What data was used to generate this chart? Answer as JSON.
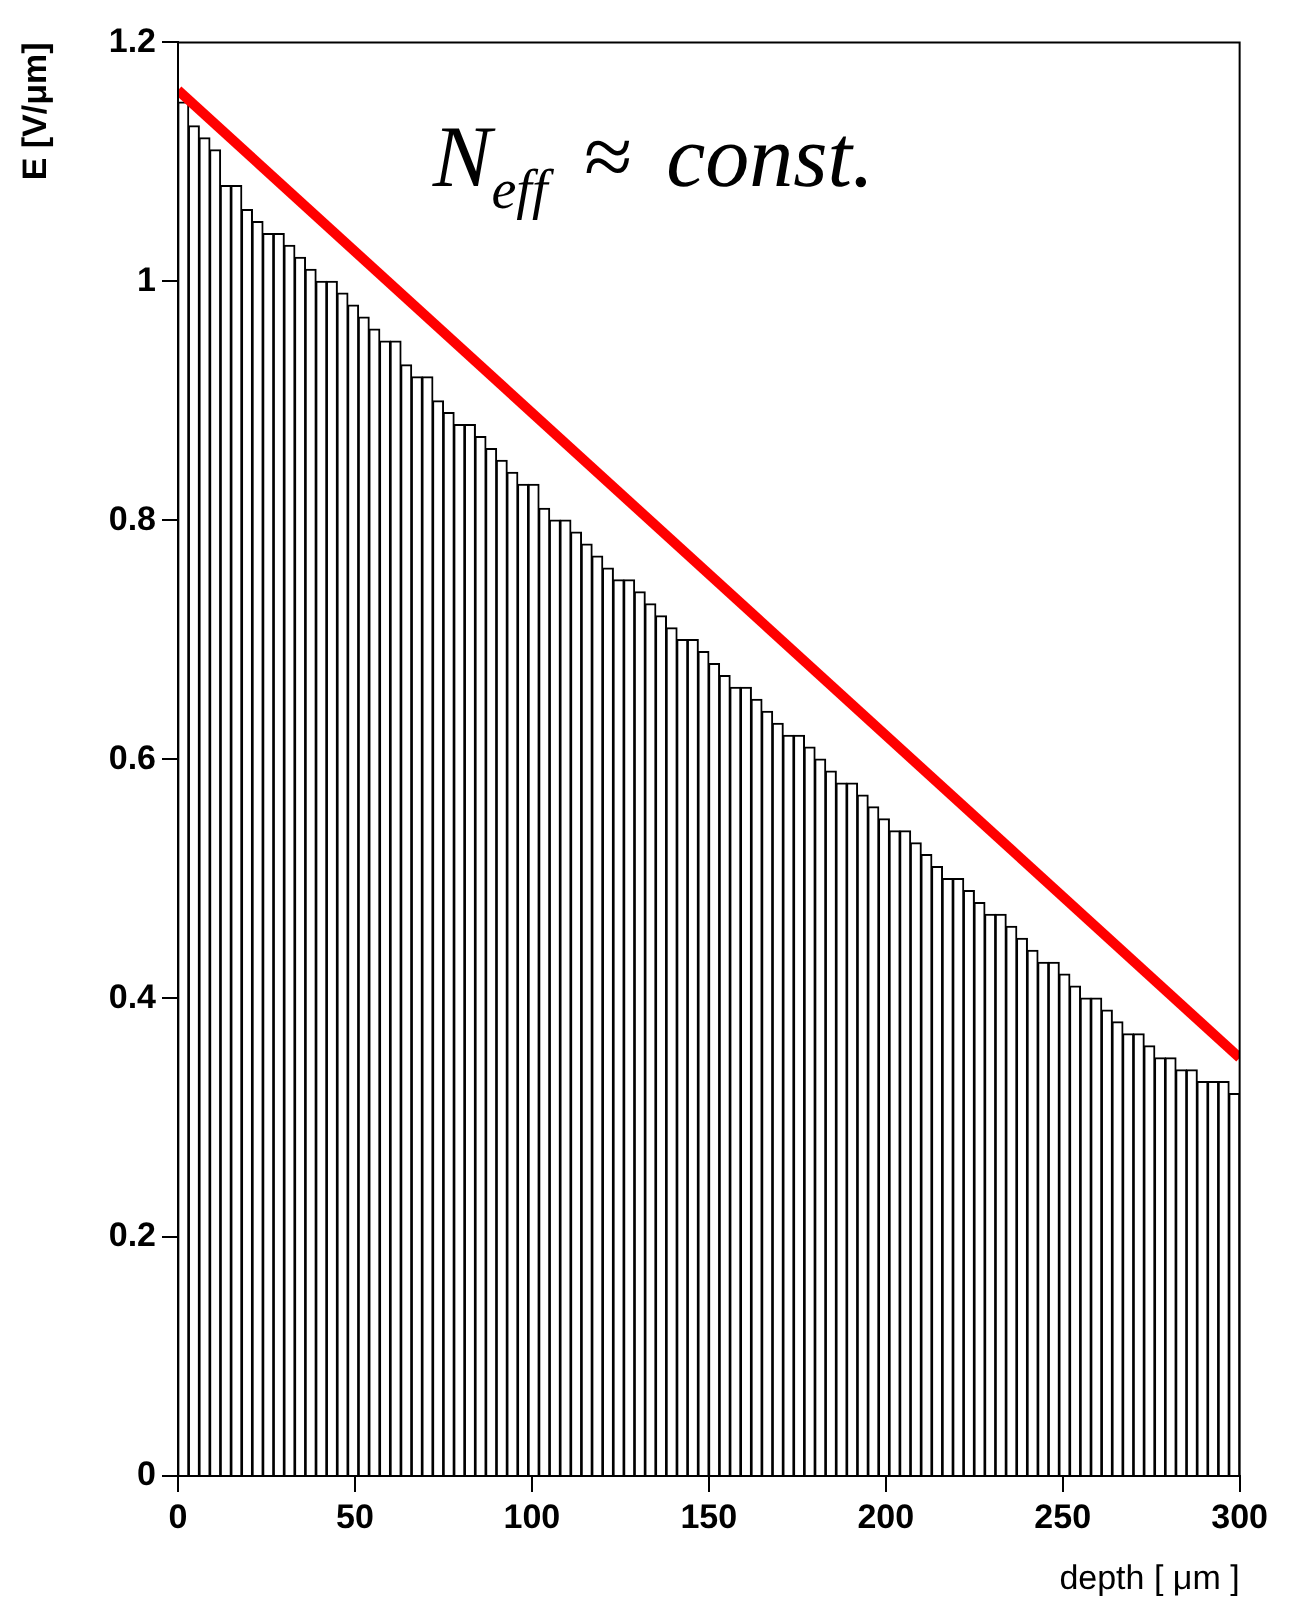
{
  "chart_data": {
    "type": "histogram",
    "bins": [
      0,
      3,
      6,
      9,
      12,
      15,
      18,
      21,
      24,
      27,
      30,
      33,
      36,
      39,
      42,
      45,
      48,
      51,
      54,
      57,
      60,
      63,
      66,
      69,
      72,
      75,
      78,
      81,
      84,
      87,
      90,
      93,
      96,
      99,
      102,
      105,
      108,
      111,
      114,
      117,
      120,
      123,
      126,
      129,
      132,
      135,
      138,
      141,
      144,
      147,
      150,
      153,
      156,
      159,
      162,
      165,
      168,
      171,
      174,
      177,
      180,
      183,
      186,
      189,
      192,
      195,
      198,
      201,
      204,
      207,
      210,
      213,
      216,
      219,
      222,
      225,
      228,
      231,
      234,
      237,
      240,
      243,
      246,
      249,
      252,
      255,
      258,
      261,
      264,
      267,
      270,
      273,
      276,
      279,
      282,
      285,
      288,
      291,
      294,
      297,
      300
    ],
    "values": [
      1.15,
      1.13,
      1.12,
      1.11,
      1.08,
      1.08,
      1.06,
      1.05,
      1.04,
      1.04,
      1.03,
      1.02,
      1.01,
      1.0,
      1.0,
      0.99,
      0.98,
      0.97,
      0.96,
      0.95,
      0.95,
      0.93,
      0.92,
      0.92,
      0.9,
      0.89,
      0.88,
      0.88,
      0.87,
      0.86,
      0.85,
      0.84,
      0.83,
      0.83,
      0.81,
      0.8,
      0.8,
      0.79,
      0.78,
      0.77,
      0.76,
      0.75,
      0.75,
      0.74,
      0.73,
      0.72,
      0.71,
      0.7,
      0.7,
      0.69,
      0.68,
      0.67,
      0.66,
      0.66,
      0.65,
      0.64,
      0.63,
      0.62,
      0.62,
      0.61,
      0.6,
      0.59,
      0.58,
      0.58,
      0.57,
      0.56,
      0.55,
      0.54,
      0.54,
      0.53,
      0.52,
      0.51,
      0.5,
      0.5,
      0.49,
      0.48,
      0.47,
      0.47,
      0.46,
      0.45,
      0.44,
      0.43,
      0.43,
      0.42,
      0.41,
      0.4,
      0.4,
      0.39,
      0.38,
      0.37,
      0.37,
      0.36,
      0.35,
      0.35,
      0.34,
      0.34,
      0.33,
      0.33,
      0.33,
      0.32
    ],
    "color": "#ffffff",
    "series": [
      {
        "type": "line",
        "color": "#ff0000",
        "x": [
          0,
          300
        ],
        "values": [
          1.16,
          0.35
        ]
      }
    ],
    "xlabel": "depth [ μm ]",
    "ylabel": "E [V/μm]",
    "xlim": [
      0,
      300
    ],
    "ylim": [
      0,
      1.2
    ],
    "xticks": [
      0,
      50,
      100,
      150,
      200,
      250,
      300
    ],
    "yticks": [
      0,
      0.2,
      0.4,
      0.6,
      0.8,
      1,
      1.2
    ],
    "annotations": [
      "N$_{eff}$ ≈ const."
    ]
  }
}
